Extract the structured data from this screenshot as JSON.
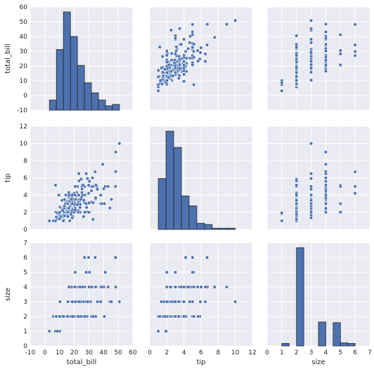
{
  "chart_data": {
    "type": "scatter",
    "title": "",
    "layout": "pair-grid",
    "grid": true,
    "colors": {
      "marker": "#4c72b0",
      "panel_background": "#eaeaf2",
      "grid": "#ffffff",
      "edge": "#262626"
    },
    "variables": [
      {
        "name": "total_bill",
        "label": "total_bill",
        "lim": [
          -10,
          60
        ],
        "ticks": [
          "-10",
          "0",
          "10",
          "20",
          "30",
          "40",
          "50",
          "60"
        ]
      },
      {
        "name": "tip",
        "label": "tip",
        "lim": [
          0,
          12
        ],
        "ticks": [
          "0",
          "2",
          "4",
          "6",
          "8",
          "10",
          "12"
        ]
      },
      {
        "name": "size",
        "label": "size",
        "lim": [
          0,
          7
        ],
        "ticks": [
          "0",
          "1",
          "2",
          "3",
          "4",
          "5",
          "6",
          "7"
        ]
      }
    ],
    "histograms": [
      {
        "variable": "total_bill",
        "edges": [
          3.07,
          7.85,
          12.63,
          17.41,
          22.19,
          26.97,
          31.75,
          36.52,
          41.3,
          46.08,
          50.86
        ],
        "counts": [
          7,
          42,
          68,
          51,
          31,
          19,
          12,
          7,
          3,
          4
        ]
      },
      {
        "variable": "tip",
        "edges": [
          1.0,
          1.9,
          2.8,
          3.7,
          4.6,
          5.5,
          6.4,
          7.3,
          8.2,
          9.1,
          10.0
        ],
        "counts": [
          41,
          79,
          66,
          27,
          19,
          5,
          4,
          1,
          1,
          1
        ]
      },
      {
        "variable": "size",
        "edges": [
          1.0,
          1.5,
          2.0,
          2.5,
          3.0,
          3.5,
          4.0,
          4.5,
          5.0,
          5.5,
          6.0
        ],
        "counts": [
          4,
          0,
          156,
          0,
          0,
          38,
          0,
          37,
          5,
          4
        ]
      }
    ],
    "points": [
      [
        16.99,
        1.01,
        2
      ],
      [
        10.34,
        1.66,
        3
      ],
      [
        21.01,
        3.5,
        3
      ],
      [
        23.68,
        3.31,
        2
      ],
      [
        24.59,
        3.61,
        4
      ],
      [
        25.29,
        4.71,
        4
      ],
      [
        8.77,
        2.0,
        2
      ],
      [
        26.88,
        3.12,
        4
      ],
      [
        15.04,
        1.96,
        2
      ],
      [
        14.78,
        3.23,
        2
      ],
      [
        10.27,
        1.71,
        2
      ],
      [
        35.26,
        5.0,
        4
      ],
      [
        15.42,
        1.57,
        2
      ],
      [
        18.43,
        3.0,
        4
      ],
      [
        14.83,
        3.02,
        2
      ],
      [
        21.58,
        3.92,
        2
      ],
      [
        10.33,
        1.67,
        3
      ],
      [
        16.29,
        3.71,
        3
      ],
      [
        16.97,
        3.5,
        3
      ],
      [
        20.65,
        3.35,
        3
      ],
      [
        17.92,
        4.08,
        2
      ],
      [
        20.29,
        2.75,
        2
      ],
      [
        15.77,
        2.23,
        2
      ],
      [
        39.42,
        7.58,
        4
      ],
      [
        19.82,
        3.18,
        2
      ],
      [
        17.81,
        2.34,
        4
      ],
      [
        13.37,
        2.0,
        2
      ],
      [
        12.69,
        2.0,
        2
      ],
      [
        21.7,
        4.3,
        2
      ],
      [
        19.65,
        3.0,
        2
      ],
      [
        9.55,
        1.45,
        2
      ],
      [
        18.35,
        2.5,
        4
      ],
      [
        15.06,
        3.0,
        2
      ],
      [
        20.69,
        2.45,
        4
      ],
      [
        17.78,
        3.27,
        2
      ],
      [
        24.06,
        3.6,
        3
      ],
      [
        16.31,
        2.0,
        3
      ],
      [
        16.93,
        3.07,
        3
      ],
      [
        18.69,
        2.31,
        3
      ],
      [
        31.27,
        5.0,
        3
      ],
      [
        16.04,
        2.24,
        3
      ],
      [
        17.46,
        2.54,
        2
      ],
      [
        13.94,
        3.06,
        2
      ],
      [
        9.68,
        1.32,
        2
      ],
      [
        30.4,
        5.6,
        4
      ],
      [
        18.29,
        3.0,
        2
      ],
      [
        22.23,
        5.0,
        2
      ],
      [
        32.4,
        6.0,
        4
      ],
      [
        28.55,
        2.05,
        3
      ],
      [
        18.04,
        3.0,
        2
      ],
      [
        12.54,
        2.5,
        2
      ],
      [
        10.29,
        2.6,
        2
      ],
      [
        34.81,
        5.2,
        4
      ],
      [
        9.94,
        1.56,
        2
      ],
      [
        25.56,
        4.34,
        4
      ],
      [
        19.49,
        3.51,
        2
      ],
      [
        38.01,
        3.0,
        4
      ],
      [
        26.41,
        1.5,
        2
      ],
      [
        11.24,
        1.76,
        2
      ],
      [
        48.27,
        6.73,
        4
      ],
      [
        20.29,
        3.21,
        2
      ],
      [
        13.81,
        2.0,
        2
      ],
      [
        11.02,
        1.98,
        2
      ],
      [
        18.29,
        3.76,
        4
      ],
      [
        17.59,
        2.64,
        3
      ],
      [
        20.08,
        3.15,
        3
      ],
      [
        16.45,
        2.47,
        2
      ],
      [
        3.07,
        1.0,
        1
      ],
      [
        20.23,
        2.01,
        2
      ],
      [
        15.01,
        2.09,
        2
      ],
      [
        12.02,
        1.97,
        2
      ],
      [
        17.07,
        3.0,
        3
      ],
      [
        26.86,
        3.14,
        2
      ],
      [
        25.28,
        5.0,
        2
      ],
      [
        14.73,
        2.2,
        2
      ],
      [
        10.51,
        1.25,
        2
      ],
      [
        17.92,
        3.08,
        2
      ],
      [
        27.2,
        4.0,
        4
      ],
      [
        22.76,
        3.0,
        2
      ],
      [
        17.29,
        2.71,
        2
      ],
      [
        19.44,
        3.0,
        2
      ],
      [
        16.66,
        3.4,
        2
      ],
      [
        10.07,
        1.83,
        1
      ],
      [
        32.68,
        5.0,
        2
      ],
      [
        15.98,
        2.03,
        2
      ],
      [
        34.83,
        5.17,
        4
      ],
      [
        13.03,
        2.0,
        2
      ],
      [
        18.28,
        4.0,
        2
      ],
      [
        24.71,
        5.85,
        2
      ],
      [
        21.16,
        3.0,
        2
      ],
      [
        28.97,
        3.0,
        2
      ],
      [
        22.49,
        3.5,
        2
      ],
      [
        5.75,
        1.0,
        2
      ],
      [
        16.32,
        4.3,
        2
      ],
      [
        22.75,
        3.25,
        2
      ],
      [
        40.17,
        4.73,
        4
      ],
      [
        27.28,
        4.0,
        2
      ],
      [
        12.03,
        1.5,
        2
      ],
      [
        21.01,
        3.0,
        2
      ],
      [
        12.46,
        1.5,
        2
      ],
      [
        11.35,
        2.5,
        2
      ],
      [
        15.38,
        3.0,
        2
      ],
      [
        44.3,
        2.5,
        3
      ],
      [
        22.42,
        3.48,
        2
      ],
      [
        20.92,
        4.08,
        2
      ],
      [
        15.36,
        1.64,
        2
      ],
      [
        20.49,
        4.06,
        2
      ],
      [
        25.21,
        4.29,
        2
      ],
      [
        18.24,
        3.76,
        2
      ],
      [
        14.31,
        4.0,
        2
      ],
      [
        14.0,
        3.0,
        2
      ],
      [
        7.25,
        1.0,
        1
      ],
      [
        38.07,
        4.0,
        3
      ],
      [
        23.95,
        2.55,
        2
      ],
      [
        25.71,
        4.0,
        3
      ],
      [
        17.31,
        3.5,
        2
      ],
      [
        29.93,
        5.07,
        4
      ],
      [
        10.65,
        1.5,
        2
      ],
      [
        12.43,
        1.8,
        2
      ],
      [
        24.08,
        2.92,
        4
      ],
      [
        11.69,
        2.31,
        2
      ],
      [
        13.42,
        1.68,
        2
      ],
      [
        14.26,
        2.5,
        2
      ],
      [
        15.95,
        2.0,
        2
      ],
      [
        12.48,
        2.52,
        2
      ],
      [
        29.8,
        4.2,
        6
      ],
      [
        8.52,
        1.48,
        2
      ],
      [
        14.52,
        2.0,
        2
      ],
      [
        11.38,
        2.0,
        2
      ],
      [
        22.82,
        2.18,
        3
      ],
      [
        19.08,
        1.5,
        2
      ],
      [
        20.27,
        2.83,
        2
      ],
      [
        11.17,
        1.5,
        2
      ],
      [
        12.26,
        2.0,
        2
      ],
      [
        18.26,
        3.25,
        2
      ],
      [
        8.51,
        1.25,
        2
      ],
      [
        10.33,
        2.0,
        2
      ],
      [
        14.15,
        2.0,
        2
      ],
      [
        16.0,
        2.0,
        2
      ],
      [
        13.16,
        2.75,
        2
      ],
      [
        17.47,
        3.5,
        2
      ],
      [
        34.3,
        6.7,
        6
      ],
      [
        41.19,
        5.0,
        5
      ],
      [
        27.05,
        5.0,
        6
      ],
      [
        16.43,
        2.3,
        2
      ],
      [
        8.35,
        1.5,
        2
      ],
      [
        18.64,
        1.36,
        3
      ],
      [
        11.87,
        1.63,
        2
      ],
      [
        9.78,
        1.73,
        2
      ],
      [
        7.51,
        2.0,
        2
      ],
      [
        14.07,
        2.5,
        2
      ],
      [
        13.13,
        2.0,
        2
      ],
      [
        17.26,
        2.74,
        3
      ],
      [
        24.55,
        2.0,
        4
      ],
      [
        19.77,
        2.0,
        4
      ],
      [
        29.85,
        5.14,
        5
      ],
      [
        48.17,
        5.0,
        6
      ],
      [
        25.0,
        3.75,
        4
      ],
      [
        13.39,
        2.61,
        2
      ],
      [
        16.49,
        2.0,
        4
      ],
      [
        21.5,
        3.5,
        4
      ],
      [
        12.66,
        2.5,
        2
      ],
      [
        16.21,
        2.0,
        3
      ],
      [
        13.81,
        2.0,
        2
      ],
      [
        17.51,
        3.0,
        2
      ],
      [
        24.52,
        3.48,
        3
      ],
      [
        20.76,
        2.24,
        2
      ],
      [
        31.71,
        4.5,
        4
      ],
      [
        10.59,
        1.61,
        2
      ],
      [
        10.63,
        2.0,
        2
      ],
      [
        50.81,
        10.0,
        3
      ],
      [
        15.81,
        3.16,
        2
      ],
      [
        7.25,
        5.15,
        2
      ],
      [
        31.85,
        3.18,
        2
      ],
      [
        16.82,
        4.0,
        2
      ],
      [
        32.9,
        3.11,
        2
      ],
      [
        17.89,
        2.0,
        2
      ],
      [
        14.48,
        2.0,
        2
      ],
      [
        9.6,
        4.0,
        2
      ],
      [
        34.63,
        3.55,
        2
      ],
      [
        34.65,
        3.68,
        4
      ],
      [
        23.33,
        5.65,
        2
      ],
      [
        45.35,
        3.5,
        3
      ],
      [
        23.17,
        6.5,
        4
      ],
      [
        40.55,
        3.0,
        2
      ],
      [
        20.69,
        5.0,
        5
      ],
      [
        20.9,
        3.5,
        3
      ],
      [
        30.46,
        2.0,
        5
      ],
      [
        18.15,
        3.5,
        3
      ],
      [
        23.1,
        4.0,
        3
      ],
      [
        15.69,
        1.5,
        2
      ],
      [
        19.81,
        4.19,
        2
      ],
      [
        28.44,
        2.56,
        2
      ],
      [
        15.48,
        2.02,
        2
      ],
      [
        16.58,
        4.0,
        2
      ],
      [
        7.56,
        1.44,
        2
      ],
      [
        10.34,
        2.0,
        2
      ],
      [
        43.11,
        5.0,
        4
      ],
      [
        13.0,
        2.0,
        2
      ],
      [
        13.51,
        2.0,
        2
      ],
      [
        18.71,
        4.0,
        3
      ],
      [
        12.74,
        2.01,
        2
      ],
      [
        13.0,
        2.0,
        2
      ],
      [
        16.4,
        2.5,
        2
      ],
      [
        20.53,
        4.0,
        4
      ],
      [
        16.47,
        3.23,
        3
      ],
      [
        26.59,
        3.41,
        3
      ],
      [
        38.73,
        3.0,
        4
      ],
      [
        24.27,
        2.03,
        2
      ],
      [
        12.76,
        2.23,
        2
      ],
      [
        30.06,
        2.0,
        3
      ],
      [
        25.89,
        5.16,
        4
      ],
      [
        48.33,
        9.0,
        4
      ],
      [
        13.27,
        2.5,
        2
      ],
      [
        28.17,
        6.5,
        3
      ],
      [
        12.9,
        1.1,
        2
      ],
      [
        28.15,
        3.0,
        5
      ],
      [
        11.59,
        1.5,
        2
      ],
      [
        7.74,
        1.44,
        2
      ],
      [
        30.14,
        3.09,
        4
      ],
      [
        12.16,
        2.2,
        2
      ],
      [
        13.42,
        3.48,
        2
      ],
      [
        8.58,
        1.92,
        1
      ],
      [
        15.98,
        3.0,
        3
      ],
      [
        13.42,
        1.58,
        2
      ],
      [
        16.27,
        2.5,
        2
      ],
      [
        10.09,
        2.0,
        2
      ],
      [
        20.45,
        3.0,
        4
      ],
      [
        13.28,
        2.72,
        2
      ],
      [
        22.12,
        2.88,
        2
      ],
      [
        24.01,
        2.0,
        4
      ],
      [
        15.69,
        3.0,
        3
      ],
      [
        11.61,
        3.39,
        2
      ],
      [
        10.77,
        1.47,
        2
      ],
      [
        15.53,
        3.0,
        2
      ],
      [
        10.07,
        1.25,
        2
      ],
      [
        12.6,
        1.0,
        2
      ],
      [
        32.83,
        1.17,
        2
      ],
      [
        35.83,
        4.67,
        3
      ],
      [
        29.03,
        5.92,
        3
      ],
      [
        27.18,
        2.0,
        2
      ],
      [
        22.67,
        2.0,
        2
      ],
      [
        17.82,
        1.75,
        2
      ],
      [
        18.78,
        3.0,
        2
      ]
    ]
  }
}
